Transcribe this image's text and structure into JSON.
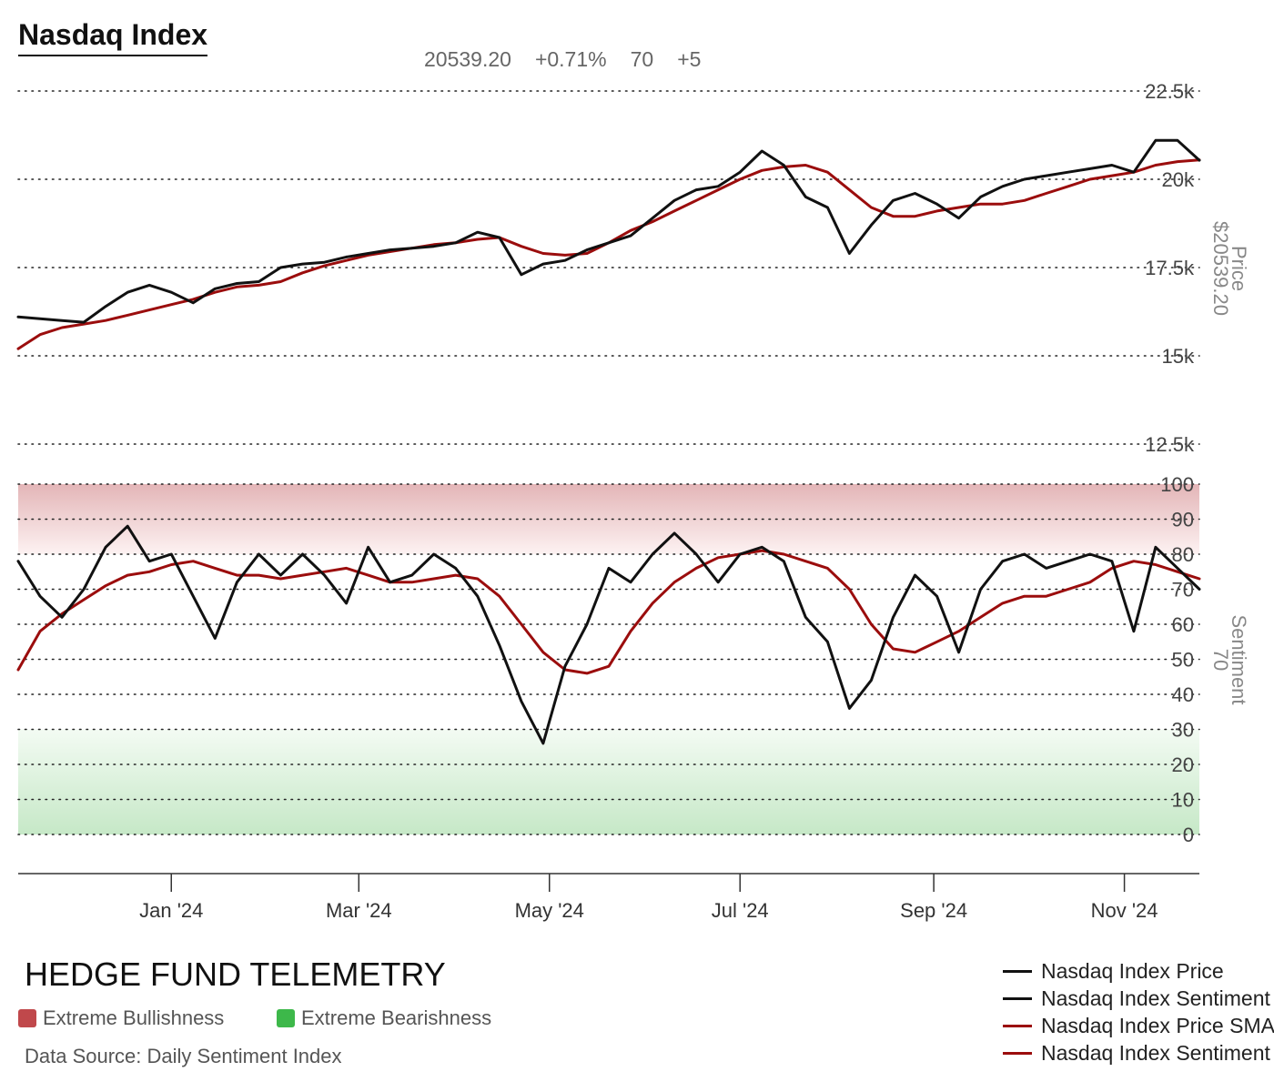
{
  "header": {
    "title": "Nasdaq Index",
    "price": "20539.20",
    "change_pct": "+0.71%",
    "sentiment": "70",
    "sentiment_change": "+5"
  },
  "footer": {
    "brand": "HEDGE FUND TELEMETRY",
    "bull_label": "Extreme Bullishness",
    "bear_label": "Extreme Bearishness",
    "source": "Data Source: Daily Sentiment Index"
  },
  "colors": {
    "price_line": "#111111",
    "sma_line": "#9b0d0d",
    "bull_zone": "#c0484b",
    "bear_zone": "#3db84a"
  },
  "chart_data": [
    {
      "type": "line",
      "axis_title": "Price",
      "axis_value_label": "$20539.20",
      "y_ticks": [
        "12.5k",
        "15k",
        "17.5k",
        "20k",
        "22.5k"
      ],
      "ylim": [
        12500,
        22500
      ],
      "x_ticks": [
        "Jan '24",
        "Mar '24",
        "May '24",
        "Jul '24",
        "Sep '24",
        "Nov '24"
      ],
      "grid": "dotted horizontal",
      "legend_position": "bottom-right",
      "series": [
        {
          "name": "Nasdaq Index Price",
          "color": "#111111",
          "points": [
            [
              "2023-11-13",
              16100
            ],
            [
              "2023-11-20",
              16050
            ],
            [
              "2023-11-27",
              16000
            ],
            [
              "2023-12-04",
              15950
            ],
            [
              "2023-12-11",
              16400
            ],
            [
              "2023-12-18",
              16800
            ],
            [
              "2023-12-25",
              17000
            ],
            [
              "2024-01-01",
              16800
            ],
            [
              "2024-01-08",
              16500
            ],
            [
              "2024-01-15",
              16900
            ],
            [
              "2024-01-22",
              17050
            ],
            [
              "2024-01-29",
              17100
            ],
            [
              "2024-02-05",
              17500
            ],
            [
              "2024-02-12",
              17600
            ],
            [
              "2024-02-19",
              17650
            ],
            [
              "2024-02-26",
              17800
            ],
            [
              "2024-03-04",
              17900
            ],
            [
              "2024-03-11",
              18000
            ],
            [
              "2024-03-18",
              18050
            ],
            [
              "2024-03-25",
              18100
            ],
            [
              "2024-04-01",
              18200
            ],
            [
              "2024-04-08",
              18500
            ],
            [
              "2024-04-15",
              18350
            ],
            [
              "2024-04-22",
              17300
            ],
            [
              "2024-04-29",
              17600
            ],
            [
              "2024-05-06",
              17700
            ],
            [
              "2024-05-13",
              18000
            ],
            [
              "2024-05-20",
              18200
            ],
            [
              "2024-05-27",
              18400
            ],
            [
              "2024-06-03",
              18900
            ],
            [
              "2024-06-10",
              19400
            ],
            [
              "2024-06-17",
              19700
            ],
            [
              "2024-06-24",
              19800
            ],
            [
              "2024-07-01",
              20200
            ],
            [
              "2024-07-08",
              20800
            ],
            [
              "2024-07-15",
              20400
            ],
            [
              "2024-07-22",
              19500
            ],
            [
              "2024-07-29",
              19200
            ],
            [
              "2024-08-05",
              17900
            ],
            [
              "2024-08-12",
              18700
            ],
            [
              "2024-08-19",
              19400
            ],
            [
              "2024-08-26",
              19600
            ],
            [
              "2024-09-02",
              19300
            ],
            [
              "2024-09-09",
              18900
            ],
            [
              "2024-09-16",
              19500
            ],
            [
              "2024-09-23",
              19800
            ],
            [
              "2024-09-30",
              20000
            ],
            [
              "2024-10-07",
              20100
            ],
            [
              "2024-10-14",
              20200
            ],
            [
              "2024-10-21",
              20300
            ],
            [
              "2024-10-28",
              20400
            ],
            [
              "2024-11-04",
              20200
            ],
            [
              "2024-11-11",
              21100
            ],
            [
              "2024-11-18",
              21100
            ],
            [
              "2024-11-25",
              20539
            ]
          ]
        },
        {
          "name": "Nasdaq Index Price SMA",
          "color": "#9b0d0d",
          "points": [
            [
              "2023-11-13",
              15200
            ],
            [
              "2023-11-20",
              15600
            ],
            [
              "2023-11-27",
              15800
            ],
            [
              "2023-12-04",
              15900
            ],
            [
              "2023-12-11",
              16000
            ],
            [
              "2023-12-18",
              16150
            ],
            [
              "2023-12-25",
              16300
            ],
            [
              "2024-01-01",
              16450
            ],
            [
              "2024-01-08",
              16600
            ],
            [
              "2024-01-15",
              16800
            ],
            [
              "2024-01-22",
              16950
            ],
            [
              "2024-01-29",
              17000
            ],
            [
              "2024-02-05",
              17100
            ],
            [
              "2024-02-12",
              17350
            ],
            [
              "2024-02-19",
              17550
            ],
            [
              "2024-02-26",
              17700
            ],
            [
              "2024-03-04",
              17850
            ],
            [
              "2024-03-11",
              17950
            ],
            [
              "2024-03-18",
              18050
            ],
            [
              "2024-03-25",
              18150
            ],
            [
              "2024-04-01",
              18200
            ],
            [
              "2024-04-08",
              18300
            ],
            [
              "2024-04-15",
              18350
            ],
            [
              "2024-04-22",
              18100
            ],
            [
              "2024-04-29",
              17900
            ],
            [
              "2024-05-06",
              17850
            ],
            [
              "2024-05-13",
              17900
            ],
            [
              "2024-05-20",
              18200
            ],
            [
              "2024-05-27",
              18550
            ],
            [
              "2024-06-03",
              18800
            ],
            [
              "2024-06-10",
              19100
            ],
            [
              "2024-06-17",
              19400
            ],
            [
              "2024-06-24",
              19700
            ],
            [
              "2024-07-01",
              20000
            ],
            [
              "2024-07-08",
              20250
            ],
            [
              "2024-07-15",
              20350
            ],
            [
              "2024-07-22",
              20400
            ],
            [
              "2024-07-29",
              20200
            ],
            [
              "2024-08-05",
              19700
            ],
            [
              "2024-08-12",
              19200
            ],
            [
              "2024-08-19",
              18950
            ],
            [
              "2024-08-26",
              18950
            ],
            [
              "2024-09-02",
              19100
            ],
            [
              "2024-09-09",
              19200
            ],
            [
              "2024-09-16",
              19300
            ],
            [
              "2024-09-23",
              19300
            ],
            [
              "2024-09-30",
              19400
            ],
            [
              "2024-10-07",
              19600
            ],
            [
              "2024-10-14",
              19800
            ],
            [
              "2024-10-21",
              20000
            ],
            [
              "2024-10-28",
              20100
            ],
            [
              "2024-11-04",
              20200
            ],
            [
              "2024-11-11",
              20400
            ],
            [
              "2024-11-18",
              20500
            ],
            [
              "2024-11-25",
              20550
            ]
          ]
        }
      ]
    },
    {
      "type": "line",
      "axis_title": "Sentiment",
      "axis_value_label": "70",
      "y_ticks": [
        "0",
        "10",
        "20",
        "30",
        "40",
        "50",
        "60",
        "70",
        "80",
        "90",
        "100"
      ],
      "ylim": [
        0,
        100
      ],
      "bands": [
        {
          "label": "Extreme Bullishness",
          "from": 80,
          "to": 100
        },
        {
          "label": "Extreme Bearishness",
          "from": 0,
          "to": 30
        }
      ],
      "series": [
        {
          "name": "Nasdaq Index Sentiment",
          "color": "#111111",
          "points": [
            [
              "2023-11-13",
              78
            ],
            [
              "2023-11-20",
              68
            ],
            [
              "2023-11-27",
              62
            ],
            [
              "2023-12-04",
              70
            ],
            [
              "2023-12-11",
              82
            ],
            [
              "2023-12-18",
              88
            ],
            [
              "2023-12-25",
              78
            ],
            [
              "2024-01-01",
              80
            ],
            [
              "2024-01-08",
              68
            ],
            [
              "2024-01-15",
              56
            ],
            [
              "2024-01-22",
              72
            ],
            [
              "2024-01-29",
              80
            ],
            [
              "2024-02-05",
              74
            ],
            [
              "2024-02-12",
              80
            ],
            [
              "2024-02-19",
              74
            ],
            [
              "2024-02-26",
              66
            ],
            [
              "2024-03-04",
              82
            ],
            [
              "2024-03-11",
              72
            ],
            [
              "2024-03-18",
              74
            ],
            [
              "2024-03-25",
              80
            ],
            [
              "2024-04-01",
              76
            ],
            [
              "2024-04-08",
              68
            ],
            [
              "2024-04-15",
              54
            ],
            [
              "2024-04-22",
              38
            ],
            [
              "2024-04-29",
              26
            ],
            [
              "2024-05-06",
              48
            ],
            [
              "2024-05-13",
              60
            ],
            [
              "2024-05-20",
              76
            ],
            [
              "2024-05-27",
              72
            ],
            [
              "2024-06-03",
              80
            ],
            [
              "2024-06-10",
              86
            ],
            [
              "2024-06-17",
              80
            ],
            [
              "2024-06-24",
              72
            ],
            [
              "2024-07-01",
              80
            ],
            [
              "2024-07-08",
              82
            ],
            [
              "2024-07-15",
              78
            ],
            [
              "2024-07-22",
              62
            ],
            [
              "2024-07-29",
              55
            ],
            [
              "2024-08-05",
              36
            ],
            [
              "2024-08-12",
              44
            ],
            [
              "2024-08-19",
              62
            ],
            [
              "2024-08-26",
              74
            ],
            [
              "2024-09-02",
              68
            ],
            [
              "2024-09-09",
              52
            ],
            [
              "2024-09-16",
              70
            ],
            [
              "2024-09-23",
              78
            ],
            [
              "2024-09-30",
              80
            ],
            [
              "2024-10-07",
              76
            ],
            [
              "2024-10-14",
              78
            ],
            [
              "2024-10-21",
              80
            ],
            [
              "2024-10-28",
              78
            ],
            [
              "2024-11-04",
              58
            ],
            [
              "2024-11-11",
              82
            ],
            [
              "2024-11-18",
              76
            ],
            [
              "2024-11-25",
              70
            ]
          ]
        },
        {
          "name": "Nasdaq Index Sentiment SMA",
          "color": "#9b0d0d",
          "points": [
            [
              "2023-11-13",
              47
            ],
            [
              "2023-11-20",
              58
            ],
            [
              "2023-11-27",
              63
            ],
            [
              "2023-12-04",
              67
            ],
            [
              "2023-12-11",
              71
            ],
            [
              "2023-12-18",
              74
            ],
            [
              "2023-12-25",
              75
            ],
            [
              "2024-01-01",
              77
            ],
            [
              "2024-01-08",
              78
            ],
            [
              "2024-01-15",
              76
            ],
            [
              "2024-01-22",
              74
            ],
            [
              "2024-01-29",
              74
            ],
            [
              "2024-02-05",
              73
            ],
            [
              "2024-02-12",
              74
            ],
            [
              "2024-02-19",
              75
            ],
            [
              "2024-02-26",
              76
            ],
            [
              "2024-03-04",
              74
            ],
            [
              "2024-03-11",
              72
            ],
            [
              "2024-03-18",
              72
            ],
            [
              "2024-03-25",
              73
            ],
            [
              "2024-04-01",
              74
            ],
            [
              "2024-04-08",
              73
            ],
            [
              "2024-04-15",
              68
            ],
            [
              "2024-04-22",
              60
            ],
            [
              "2024-04-29",
              52
            ],
            [
              "2024-05-06",
              47
            ],
            [
              "2024-05-13",
              46
            ],
            [
              "2024-05-20",
              48
            ],
            [
              "2024-05-27",
              58
            ],
            [
              "2024-06-03",
              66
            ],
            [
              "2024-06-10",
              72
            ],
            [
              "2024-06-17",
              76
            ],
            [
              "2024-06-24",
              79
            ],
            [
              "2024-07-01",
              80
            ],
            [
              "2024-07-08",
              81
            ],
            [
              "2024-07-15",
              80
            ],
            [
              "2024-07-22",
              78
            ],
            [
              "2024-07-29",
              76
            ],
            [
              "2024-08-05",
              70
            ],
            [
              "2024-08-12",
              60
            ],
            [
              "2024-08-19",
              53
            ],
            [
              "2024-08-26",
              52
            ],
            [
              "2024-09-02",
              55
            ],
            [
              "2024-09-09",
              58
            ],
            [
              "2024-09-16",
              62
            ],
            [
              "2024-09-23",
              66
            ],
            [
              "2024-09-30",
              68
            ],
            [
              "2024-10-07",
              68
            ],
            [
              "2024-10-14",
              70
            ],
            [
              "2024-10-21",
              72
            ],
            [
              "2024-10-28",
              76
            ],
            [
              "2024-11-04",
              78
            ],
            [
              "2024-11-11",
              77
            ],
            [
              "2024-11-18",
              75
            ],
            [
              "2024-11-25",
              73
            ]
          ]
        }
      ]
    }
  ]
}
